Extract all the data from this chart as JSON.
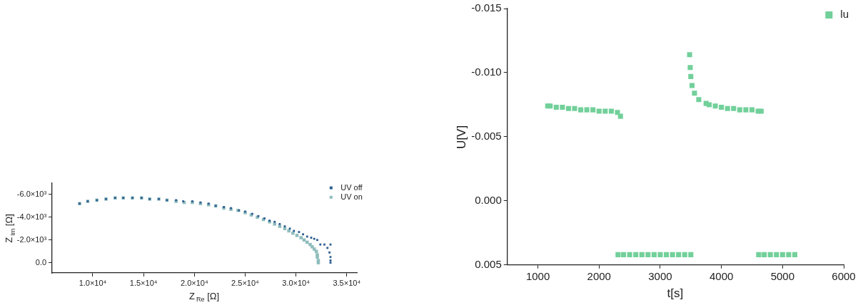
{
  "chart_data": [
    {
      "type": "scatter",
      "xlabel": "Z$_{Re}$ [Ω]",
      "ylabel": "Z$_{Im}$ [Ω]",
      "marker": "square",
      "legend": "top right",
      "grid": false,
      "xlim": [
        6000,
        36000
      ],
      "ylim": [
        900,
        -7000
      ],
      "xticks": [
        {
          "value": 10000,
          "label": "1.0×10⁴"
        },
        {
          "value": 15000,
          "label": "1.5×10⁴"
        },
        {
          "value": 20000,
          "label": "2.0×10⁴"
        },
        {
          "value": 25000,
          "label": "2.5×10⁴"
        },
        {
          "value": 30000,
          "label": "3.0×10⁴"
        },
        {
          "value": 35000,
          "label": "3.5×10⁴"
        }
      ],
      "yticks": [
        {
          "value": -6000,
          "label": "-6.0×10³"
        },
        {
          "value": -4000,
          "label": "-4.0×10³"
        },
        {
          "value": -2000,
          "label": "-2.0×10³"
        },
        {
          "value": 0,
          "label": "0.0"
        }
      ],
      "series": [
        {
          "name": "UV off",
          "color": "#2e5f92",
          "x": [
            8700,
            9500,
            10400,
            11300,
            12200,
            13000,
            13900,
            14800,
            15600,
            16500,
            17300,
            18200,
            18900,
            19800,
            20600,
            21400,
            22100,
            22900,
            23600,
            24400,
            25000,
            25700,
            26300,
            26900,
            27400,
            27900,
            28400,
            28900,
            29400,
            29800,
            30300,
            30700,
            31100,
            31500,
            31800,
            32100,
            32400,
            32800,
            33100,
            33300,
            33400,
            33400,
            33400,
            33400
          ],
          "values": [
            -5200,
            -5400,
            -5500,
            -5600,
            -5700,
            -5700,
            -5700,
            -5700,
            -5600,
            -5600,
            -5500,
            -5500,
            -5400,
            -5400,
            -5300,
            -5200,
            -5000,
            -4900,
            -4800,
            -4600,
            -4500,
            -4300,
            -4100,
            -3900,
            -3700,
            -3600,
            -3400,
            -3200,
            -3000,
            -2800,
            -2700,
            -2500,
            -2300,
            -2200,
            -2100,
            -2000,
            -1600,
            -1600,
            -1300,
            -900,
            -500,
            -200,
            0,
            -1600
          ]
        },
        {
          "name": "UV on",
          "color": "#8fbcbc",
          "x": [
            8700,
            9500,
            10400,
            11300,
            12200,
            13000,
            13900,
            14800,
            15600,
            16500,
            17300,
            18200,
            19000,
            19800,
            20600,
            21400,
            22100,
            22900,
            23600,
            24300,
            25000,
            25600,
            26200,
            26800,
            27400,
            27900,
            28400,
            28900,
            29300,
            29700,
            30100,
            30500,
            30800,
            31100,
            31400,
            31600,
            31800,
            32000,
            32100,
            32100,
            32200,
            32200
          ],
          "values": [
            -5200,
            -5400,
            -5500,
            -5600,
            -5700,
            -5700,
            -5700,
            -5700,
            -5600,
            -5600,
            -5500,
            -5400,
            -5300,
            -5300,
            -5200,
            -5100,
            -5000,
            -4800,
            -4700,
            -4600,
            -4400,
            -4200,
            -4000,
            -3800,
            -3600,
            -3400,
            -3200,
            -3000,
            -2800,
            -2600,
            -2400,
            -2200,
            -2000,
            -1800,
            -1600,
            -1400,
            -1200,
            -1000,
            -700,
            -500,
            -200,
            0
          ]
        }
      ]
    },
    {
      "type": "scatter",
      "xlabel": "t[s]",
      "ylabel": "U[V]",
      "marker": "square",
      "legend": "top right",
      "grid": false,
      "xlim": [
        500,
        6000
      ],
      "xticks": [
        1000,
        2000,
        3000,
        4000,
        5000,
        6000
      ],
      "ylim": [
        0.005,
        -0.015
      ],
      "yticks": [
        {
          "value": -0.015,
          "label": "-0.015"
        },
        {
          "value": -0.01,
          "label": "-0.010"
        },
        {
          "value": -0.005,
          "label": "-0.005"
        },
        {
          "value": 0,
          "label": "0.000"
        },
        {
          "value": 0.005,
          "label": "0.005"
        }
      ],
      "series": [
        {
          "name": "lu",
          "color": "#72d09a",
          "x": [
            1160,
            1200,
            1300,
            1400,
            1500,
            1600,
            1700,
            1800,
            1900,
            2000,
            2100,
            2200,
            2300,
            2350,
            2310,
            2400,
            2500,
            2600,
            2700,
            2800,
            2900,
            3000,
            3100,
            3200,
            3300,
            3400,
            3500,
            3480,
            3490,
            3500,
            3520,
            3560,
            3630,
            3750,
            3800,
            3900,
            4000,
            4100,
            4200,
            4300,
            4400,
            4500,
            4600,
            4650,
            4610,
            4700,
            4800,
            4900,
            5000,
            5100,
            5200
          ],
          "values": [
            -0.0074,
            -0.0074,
            -0.0073,
            -0.0073,
            -0.0072,
            -0.0072,
            -0.0071,
            -0.0071,
            -0.0071,
            -0.007,
            -0.007,
            -0.007,
            -0.0069,
            -0.0066,
            0.0042,
            0.0042,
            0.0042,
            0.0042,
            0.0042,
            0.0042,
            0.0042,
            0.0042,
            0.0042,
            0.0042,
            0.0042,
            0.0042,
            0.0042,
            -0.0114,
            -0.0104,
            -0.0097,
            -0.009,
            -0.0084,
            -0.0079,
            -0.0076,
            -0.0075,
            -0.0074,
            -0.0073,
            -0.0072,
            -0.0072,
            -0.0071,
            -0.0071,
            -0.0071,
            -0.007,
            -0.007,
            0.0042,
            0.0042,
            0.0042,
            0.0042,
            0.0042,
            0.0042,
            0.0042
          ]
        }
      ]
    }
  ]
}
